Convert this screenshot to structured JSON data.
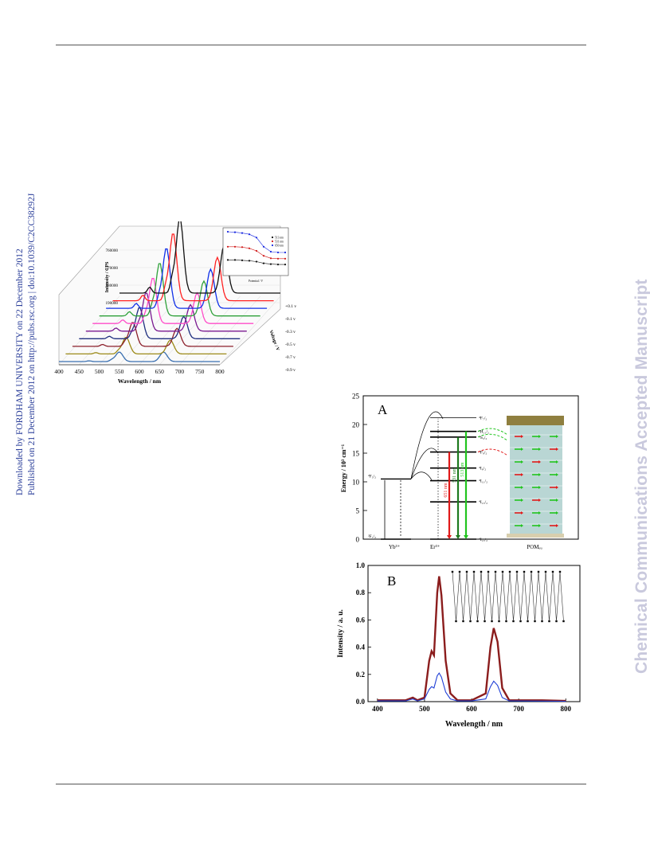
{
  "sidebar": {
    "download_line": "Downloaded by FORDHAM UNIVERSITY on 22 December 2012",
    "publish_line": "Published on 21 December 2012 on http://pubs.rsc.org | doi:10.1039/C2CC38292J",
    "watermark": "Chemical Communications Accepted Manuscript"
  },
  "figure3d": {
    "xlabel": "Wavelength / nm",
    "zlabel": "Intensity / CPS",
    "voltage_axis_label": "Voltage / V",
    "xticks": [
      "400",
      "450",
      "500",
      "550",
      "600",
      "650",
      "700",
      "750",
      "800"
    ],
    "zticks": [
      "190000",
      "380000",
      "570000",
      "760000"
    ],
    "voltage_labels": [
      "+0.1 v",
      "-0.1 v",
      "-0.3 v",
      "-0.5 v",
      "-0.7 v",
      "-0.9 v"
    ],
    "inset_legend": [
      "513 nm",
      "531 nm",
      "650 nm"
    ],
    "inset_xlabel": "Potential / V",
    "colors": [
      "#3a6fb0",
      "#9c8a18",
      "#8b1f2a",
      "#1f2f7f",
      "#7a1a90",
      "#ff4cc9",
      "#2fa13a",
      "#1030e8",
      "#ff2020",
      "#111111"
    ]
  },
  "panelA": {
    "label": "A",
    "ylabel": "Energy / 10³ cm⁻¹",
    "yticks": [
      "0",
      "5",
      "10",
      "15",
      "20",
      "25"
    ],
    "yb_label": "Yb³⁺",
    "er_label": "Er³⁺",
    "pom_label": "POMₑᵤ",
    "yb_levels": [
      "²F₇/₂",
      "²F₅/₂"
    ],
    "er_levels": [
      "⁴F₇/₂",
      "²H₁₁/₂",
      "⁴S₃/₂",
      "⁴F₉/₂",
      "⁴I₉/₂",
      "⁴I₁₁/₂",
      "⁴I₁₃/₂",
      "⁴I₁₅/₂"
    ],
    "transitions": [
      "651 nm",
      "531 nm",
      "513 nm"
    ],
    "colors": {
      "red": "#e11a1a",
      "green": "#22c41f",
      "darkgreen": "#1e7a1e",
      "pom_fill": "#b9d6d4",
      "pom_cap": "#8f7f3f"
    }
  },
  "panelB": {
    "label": "B",
    "xlabel": "Wavelength / nm",
    "ylabel": "Intensity / a. u.",
    "chart_data": {
      "type": "line",
      "xlim": [
        380,
        830
      ],
      "ylim": [
        0,
        1.0
      ],
      "xticks": [
        400,
        500,
        600,
        700,
        800
      ],
      "yticks": [
        0.0,
        0.2,
        0.4,
        0.6,
        0.8,
        1.0
      ],
      "series": [
        {
          "color": "#8b1d1d",
          "points": [
            [
              400,
              0.01
            ],
            [
              460,
              0.01
            ],
            [
              475,
              0.03
            ],
            [
              485,
              0.01
            ],
            [
              500,
              0.03
            ],
            [
              510,
              0.3
            ],
            [
              515,
              0.37
            ],
            [
              520,
              0.34
            ],
            [
              527,
              0.8
            ],
            [
              531,
              0.92
            ],
            [
              536,
              0.78
            ],
            [
              545,
              0.3
            ],
            [
              555,
              0.06
            ],
            [
              570,
              0.01
            ],
            [
              600,
              0.01
            ],
            [
              630,
              0.06
            ],
            [
              640,
              0.4
            ],
            [
              647,
              0.54
            ],
            [
              655,
              0.44
            ],
            [
              665,
              0.1
            ],
            [
              680,
              0.01
            ],
            [
              750,
              0.01
            ],
            [
              800,
              0.005
            ]
          ]
        },
        {
          "color": "#1f3fd6",
          "points": [
            [
              400,
              0.005
            ],
            [
              460,
              0.005
            ],
            [
              475,
              0.02
            ],
            [
              485,
              0.005
            ],
            [
              500,
              0.02
            ],
            [
              510,
              0.09
            ],
            [
              515,
              0.11
            ],
            [
              520,
              0.1
            ],
            [
              527,
              0.19
            ],
            [
              531,
              0.21
            ],
            [
              536,
              0.18
            ],
            [
              545,
              0.07
            ],
            [
              555,
              0.02
            ],
            [
              570,
              0.005
            ],
            [
              600,
              0.005
            ],
            [
              630,
              0.02
            ],
            [
              640,
              0.11
            ],
            [
              647,
              0.15
            ],
            [
              655,
              0.12
            ],
            [
              665,
              0.03
            ],
            [
              680,
              0.005
            ],
            [
              800,
              0.003
            ]
          ]
        }
      ]
    }
  }
}
